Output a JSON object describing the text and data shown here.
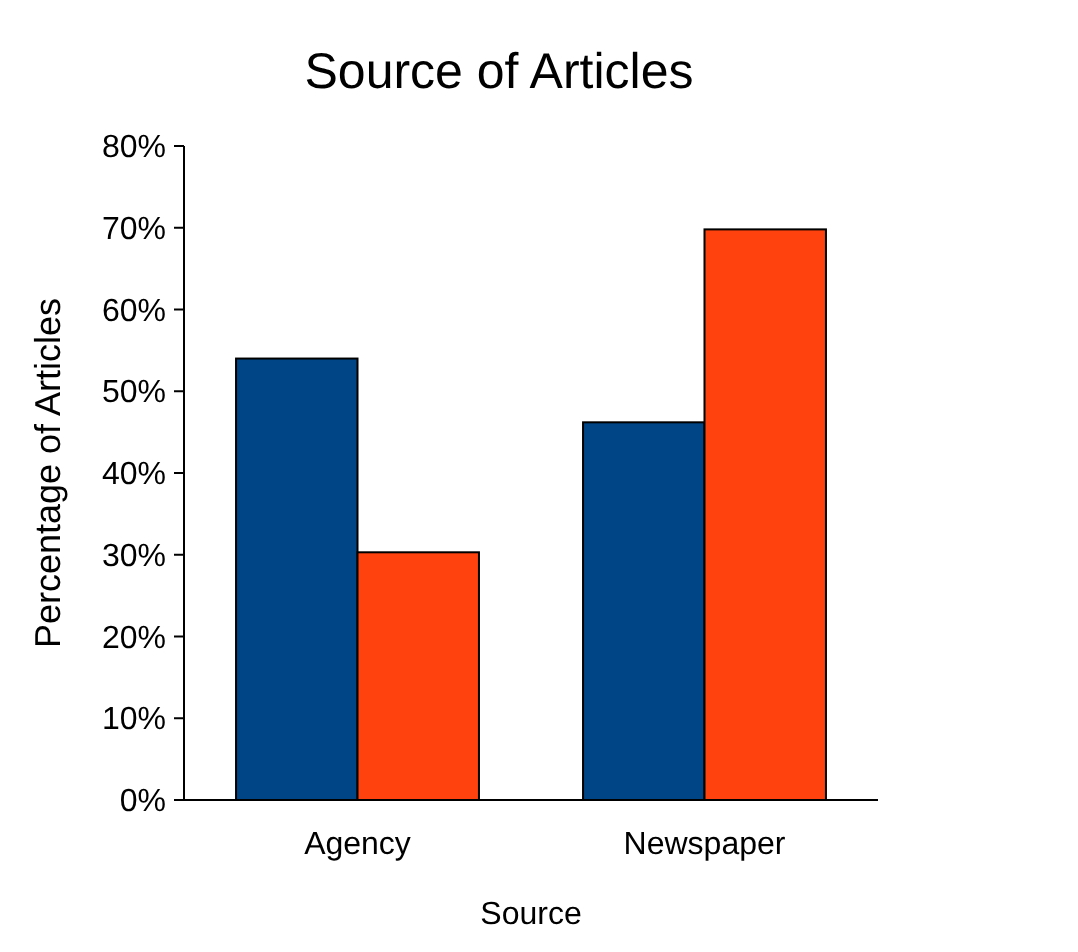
{
  "chart_data": {
    "type": "bar",
    "title": "Source of Articles",
    "xlabel": "Source",
    "ylabel": "Percentage of Articles",
    "categories": [
      "Agency",
      "Newspaper"
    ],
    "series": [
      {
        "color": "#004586",
        "values": [
          54,
          46.2
        ]
      },
      {
        "color": "#ff420e",
        "values": [
          30.3,
          69.8
        ]
      }
    ],
    "ylim": [
      0,
      80
    ],
    "yticks": [
      {
        "value": 0,
        "label": "0%"
      },
      {
        "value": 10,
        "label": "10%"
      },
      {
        "value": 20,
        "label": "20%"
      },
      {
        "value": 30,
        "label": "30%"
      },
      {
        "value": 40,
        "label": "40%"
      },
      {
        "value": 50,
        "label": "50%"
      },
      {
        "value": 60,
        "label": "60%"
      },
      {
        "value": 70,
        "label": "70%"
      },
      {
        "value": 80,
        "label": "80%"
      }
    ]
  }
}
